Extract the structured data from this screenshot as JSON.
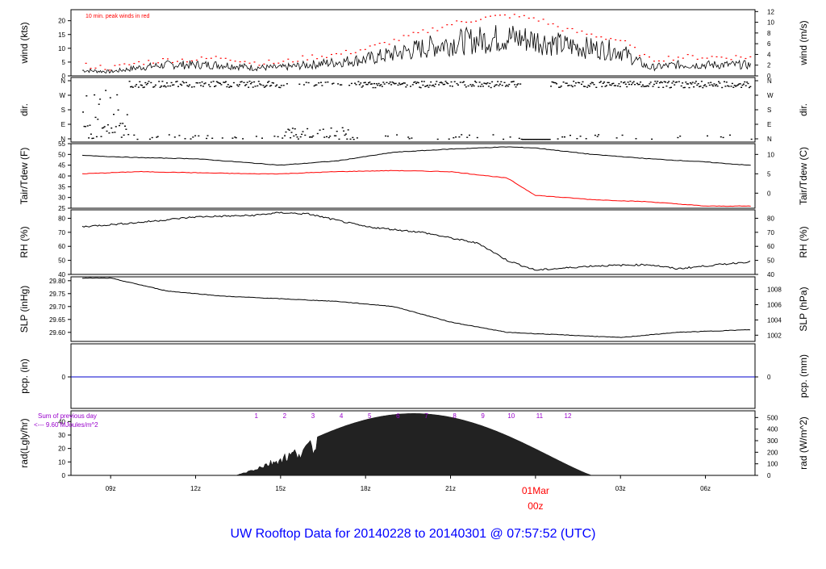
{
  "title": "UW Rooftop Data for 20140228  to  20140301 @ 07:57:52  (UTC)",
  "colors": {
    "title": "#0000ff",
    "red": "#ff0000",
    "purple": "#9900cc",
    "blue": "#0000cc",
    "axis": "#000000"
  },
  "x_axis": {
    "ticks": [
      "09z",
      "12z",
      "15z",
      "18z",
      "21z",
      "03z",
      "06z"
    ],
    "day_label": "01Mar",
    "day_hour": "00z"
  },
  "chart_data": [
    {
      "type": "line",
      "panel": "wind",
      "ylabel_left": "wind (kts)",
      "ylabel_right": "wind (m/s)",
      "ylim": [
        0,
        24
      ],
      "yticks_left": [
        "0",
        "5",
        "10",
        "15",
        "20"
      ],
      "yticks_right": [
        "0",
        "2",
        "4",
        "6",
        "8",
        "10",
        "12"
      ],
      "annotation": "10 min. peak winds in red",
      "x_hours": [
        8,
        9,
        10,
        11,
        12,
        13,
        14,
        15,
        16,
        17,
        18,
        19,
        20,
        21,
        22,
        23,
        24,
        25,
        26,
        27,
        28,
        29,
        31
      ],
      "series": [
        {
          "name": "",
          "values": [
            2,
            1.5,
            3,
            4,
            4,
            4,
            3,
            3,
            4,
            5,
            6,
            8,
            10,
            12,
            13,
            14,
            13,
            11,
            10,
            9,
            3,
            4,
            4
          ]
        },
        {
          "name": "",
          "values": [
            4,
            3,
            5,
            6,
            6,
            7,
            5,
            5,
            7,
            8,
            10,
            13,
            16,
            19,
            21,
            22,
            21,
            17,
            15,
            13,
            6,
            7,
            7
          ]
        }
      ]
    },
    {
      "type": "scatter",
      "panel": "dir",
      "ylabel_left": "dir.",
      "ylabel_right": "dir.",
      "yticks_left": [
        "N",
        "W",
        "S",
        "E",
        "N"
      ],
      "yticks_right": [
        "N",
        "W",
        "S",
        "E",
        "N"
      ]
    },
    {
      "type": "line",
      "panel": "temperature",
      "ylabel_left": "Tair/Tdew (F)",
      "ylabel_right": "Tair/Tdew (C)",
      "ylim": [
        25,
        55
      ],
      "yticks_left": [
        "25",
        "30",
        "35",
        "40",
        "45",
        "50",
        "55"
      ],
      "yticks_right": [
        "0",
        "5",
        "10"
      ],
      "x_hours": [
        8,
        10,
        12,
        14,
        15,
        17,
        19,
        21,
        23,
        24,
        26,
        28,
        30,
        31.5
      ],
      "series": [
        {
          "name": "",
          "values": [
            49.5,
            48.5,
            48,
            46,
            45,
            47,
            51,
            52.5,
            53.5,
            53,
            50,
            48,
            46.5,
            45
          ]
        },
        {
          "name": "",
          "values": [
            41,
            42,
            41.5,
            41,
            41,
            42,
            42.5,
            42,
            39,
            31,
            29,
            28,
            26,
            26
          ]
        }
      ]
    },
    {
      "type": "line",
      "panel": "rh",
      "ylabel_left": "RH (%)",
      "ylabel_right": "RH (%)",
      "ylim": [
        40,
        86
      ],
      "yticks_left": [
        "40",
        "50",
        "60",
        "70",
        "80"
      ],
      "yticks_right": [
        "40",
        "50",
        "60",
        "70",
        "80"
      ],
      "x_hours": [
        8,
        10,
        12,
        14,
        15,
        16,
        18,
        20,
        22,
        23,
        24,
        26,
        28,
        29,
        31.5
      ],
      "series": [
        {
          "name": "",
          "values": [
            74,
            77,
            81,
            82,
            84,
            83,
            74,
            70,
            62,
            50,
            43,
            46,
            47,
            44,
            49
          ]
        }
      ]
    },
    {
      "type": "line",
      "panel": "pressure",
      "ylabel_left": "SLP (inHg)",
      "ylabel_right": "SLP (hPa)",
      "ylim": [
        29.565,
        29.815
      ],
      "yticks_left": [
        "29.60",
        "29.65",
        "29.70",
        "29.75",
        "29.80"
      ],
      "yticks_right": [
        "1002",
        "1004",
        "1006",
        "1008"
      ],
      "x_hours": [
        8,
        9,
        11,
        13,
        15,
        17,
        19,
        21,
        23,
        25,
        27,
        29,
        31.5
      ],
      "series": [
        {
          "name": "",
          "values": [
            29.81,
            29.81,
            29.76,
            29.74,
            29.73,
            29.72,
            29.7,
            29.64,
            29.6,
            29.59,
            29.58,
            29.6,
            29.61
          ]
        }
      ]
    },
    {
      "type": "line",
      "panel": "precip",
      "ylabel_left": "pcp. (in)",
      "ylabel_right": "pcp. (mm)",
      "yticks_left": [
        "0"
      ],
      "yticks_right": [
        "0"
      ],
      "series": [
        {
          "name": "",
          "values": [
            0,
            0
          ]
        }
      ]
    },
    {
      "type": "area",
      "panel": "radiation",
      "ylabel_left": "rad(Lgly/hr)",
      "ylabel_right": "rad (W/m^2)",
      "ylim": [
        0,
        48
      ],
      "yticks_left": [
        "0",
        "10",
        "20",
        "30",
        "40"
      ],
      "yticks_right": [
        "0",
        "100",
        "200",
        "300",
        "400",
        "500"
      ],
      "sum_label": "Sum of previous day",
      "sum_value": "<--- 9.60 MJoules/m^2",
      "hour_marks": [
        "1",
        "2",
        "3",
        "4",
        "5",
        "6",
        "7",
        "8",
        "9",
        "10",
        "11",
        "12"
      ],
      "peak_hour": 19.7,
      "day_length_hours": 12.6,
      "peak_value": 46
    }
  ]
}
